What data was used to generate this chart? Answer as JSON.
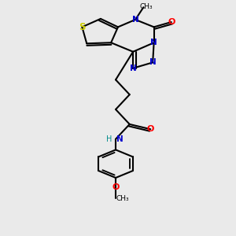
{
  "bg_color": "#eaeaea",
  "bond_color": "#000000",
  "atom_colors": {
    "O": "#ff0000",
    "N": "#0000cc",
    "S": "#cccc00",
    "H": "#008b8b",
    "C": "#000000"
  }
}
